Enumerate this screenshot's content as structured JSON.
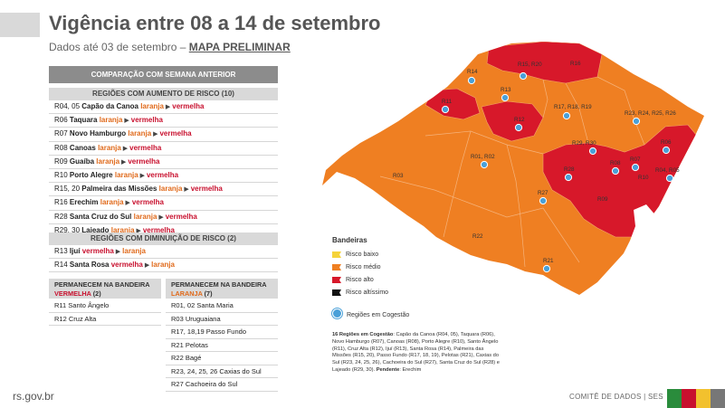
{
  "title": "Vigência entre 08 a 14 de setembro",
  "subtitle_prefix": "Dados até 03 de setembro – ",
  "subtitle_link": "MAPA PRELIMINAR",
  "comparison_header": "COMPARAÇÃO COM SEMANA ANTERIOR",
  "increase": {
    "header": "REGIÕES COM AUMENTO DE RISCO (10)",
    "rows": [
      {
        "code": "R04, 05",
        "place": "Capão da Canoa",
        "from": "laranja",
        "to": "vermelha"
      },
      {
        "code": "R06",
        "place": "Taquara",
        "from": "laranja",
        "to": "vermelha"
      },
      {
        "code": "R07",
        "place": "Novo Hamburgo",
        "from": "laranja",
        "to": "vermelha"
      },
      {
        "code": "R08",
        "place": "Canoas",
        "from": "laranja",
        "to": "vermelha"
      },
      {
        "code": "R09",
        "place": "Guaíba",
        "from": "laranja",
        "to": "vermelha"
      },
      {
        "code": "R10",
        "place": "Porto Alegre",
        "from": "laranja",
        "to": "vermelha"
      },
      {
        "code": "R15, 20",
        "place": "Palmeira das Missões",
        "from": "laranja",
        "to": "vermelha"
      },
      {
        "code": "R16",
        "place": "Erechim",
        "from": "laranja",
        "to": "vermelha"
      },
      {
        "code": "R28",
        "place": "Santa Cruz do Sul",
        "from": "laranja",
        "to": "vermelha"
      },
      {
        "code": "R29, 30",
        "place": "Lajeado",
        "from": "laranja",
        "to": "vermelha"
      }
    ]
  },
  "decrease": {
    "header": "REGIÕES COM DIMINUIÇÃO DE RISCO (2)",
    "rows": [
      {
        "code": "R13",
        "place": "Ijuí",
        "from": "vermelha",
        "to": "laranja"
      },
      {
        "code": "R14",
        "place": "Santa Rosa",
        "from": "vermelha",
        "to": "laranja"
      }
    ]
  },
  "stay_red": {
    "header_prefix": "PERMANECEM NA BANDEIRA ",
    "header_color": "VERMELHA",
    "header_count": " (2)",
    "rows": [
      {
        "code": "R11",
        "place": "Santo Ângelo"
      },
      {
        "code": "R12",
        "place": "Cruz Alta"
      }
    ]
  },
  "stay_orange": {
    "header_prefix": "PERMANECEM NA BANDEIRA ",
    "header_color": "LARANJA",
    "header_count": " (7)",
    "rows": [
      {
        "code": "R01, 02",
        "place": "Santa Maria"
      },
      {
        "code": "R03",
        "place": "Uruguaiana"
      },
      {
        "code": "R17, 18,19",
        "place": "Passo Fundo"
      },
      {
        "code": "R21",
        "place": "Pelotas"
      },
      {
        "code": "R22",
        "place": "Bagé"
      },
      {
        "code": "R23, 24, 25, 26",
        "place": "Caxias do Sul"
      },
      {
        "code": "R27",
        "place": "Cachoeira do Sul"
      }
    ]
  },
  "legend": {
    "title": "Bandeiras",
    "items": [
      {
        "label": "Risco baixo",
        "color": "#f5d33a"
      },
      {
        "label": "Risco médio",
        "color": "#ef7f22"
      },
      {
        "label": "Risco alto",
        "color": "#d7182a"
      },
      {
        "label": "Risco altíssimo",
        "color": "#111111"
      }
    ],
    "congestion_label": "Regiões em Cogestão"
  },
  "congestion_note": {
    "bold_prefix": "16 Regiões em Cogestão",
    "text": ": Capão da Canoa (R04, 05), Taquara (R06), Novo Hamburgo (R07), Canoas (R08), Porto Alegre (R10), Santo Ângelo (R11), Cruz Alta (R12), Ijuí (R13), Santa Rosa (R14), Palmeira das Missões (R15, 20), Passo Fundo (R17, 18, 19), Pelotas (R21), Caxias do Sul (R23, 24, 25, 26), Cachoeira do Sul (R27), Santa Cruz do Sul (R28) e Lajeado (R29, 30). ",
    "pending_label": "Pendente",
    "pending_text": ": Erechim"
  },
  "map_labels": {
    "R14": "R14",
    "R15_20": "R15, R20",
    "R16": "R16",
    "R13": "R13",
    "R11": "R11",
    "R17_19": "R17, R18, R19",
    "R12": "R12",
    "R23_26": "R23, R24, R25, R26",
    "R01_02": "R01, R02",
    "R29_30": "R29, R30",
    "R06": "R06",
    "R03": "R03",
    "R28": "R28",
    "R08": "R08",
    "R07": "R07",
    "R04_05": "R04, R05",
    "R10": "R10",
    "R27": "R27",
    "R09": "R09",
    "R22": "R22",
    "R21": "R21"
  },
  "colors": {
    "orange": "#ef7f22",
    "red": "#d7182a",
    "text_orange": "#e06a1b",
    "text_red": "#c8102e"
  },
  "footer": {
    "site": "rs.gov.br",
    "committee": "COMITÊ DE DADOS | SES"
  },
  "footer_stripes": [
    "#2a8c3c",
    "#c8102e",
    "#f2c12e",
    "#777777"
  ]
}
